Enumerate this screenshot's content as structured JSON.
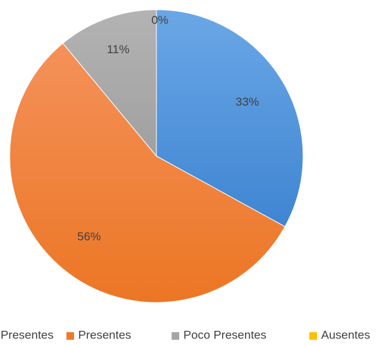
{
  "chart_data": {
    "type": "pie",
    "categories": [
      "Muy Presentes",
      "Presentes",
      "Poco Presentes",
      "Ausentes"
    ],
    "values": [
      33,
      56,
      11,
      0
    ],
    "value_labels": [
      "33%",
      "56%",
      "11%",
      "0%"
    ],
    "colors": [
      "#4a8ed8",
      "#ef7b27",
      "#a5a5a5",
      "#ffc000"
    ],
    "legend": {
      "position": "bottom",
      "entries": [
        "Muy Presentes",
        "Presentes",
        "Poco Presentes",
        "Ausentes"
      ]
    },
    "title": ""
  }
}
